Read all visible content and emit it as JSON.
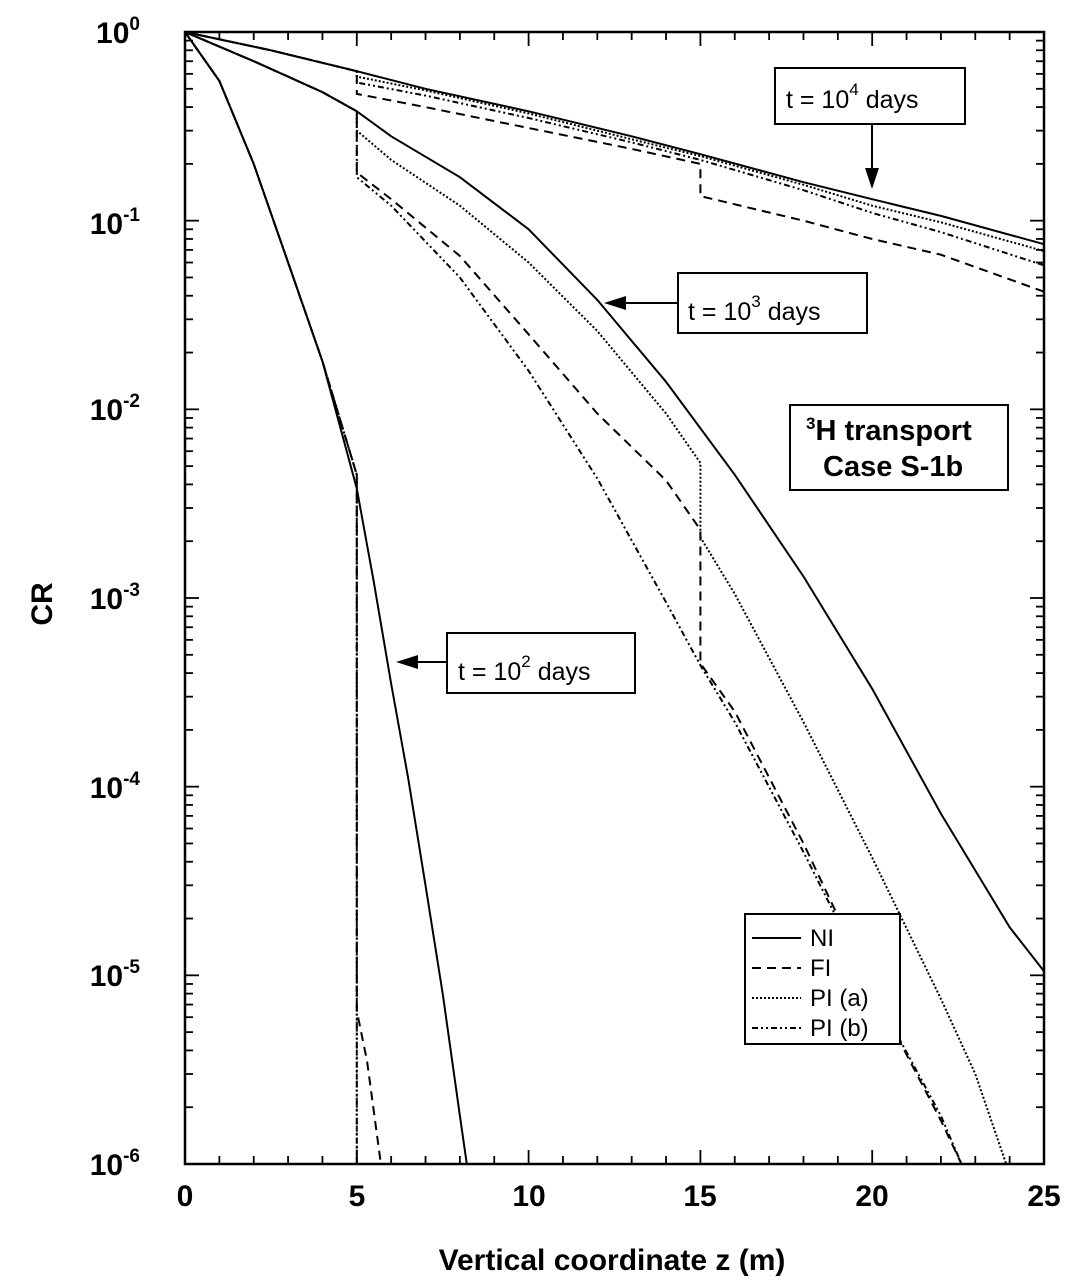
{
  "chart_data": {
    "type": "line",
    "title": "",
    "xlabel": "Vertical coordinate z (m)",
    "ylabel": "CR",
    "xlim": [
      0,
      25
    ],
    "ylim": [
      1e-06,
      1
    ],
    "yscale": "log",
    "x_ticks": [
      "0",
      "5",
      "10",
      "15",
      "20",
      "25"
    ],
    "y_ticks": [
      {
        "base": "10",
        "exp": "0"
      },
      {
        "base": "10",
        "exp": "-1"
      },
      {
        "base": "10",
        "exp": "-2"
      },
      {
        "base": "10",
        "exp": "-3"
      },
      {
        "base": "10",
        "exp": "-4"
      },
      {
        "base": "10",
        "exp": "-5"
      },
      {
        "base": "10",
        "exp": "-6"
      }
    ],
    "legend": {
      "placement": "bottom-right",
      "entries": [
        {
          "label": "NI",
          "style": "solid"
        },
        {
          "label": "FI",
          "style": "dashed"
        },
        {
          "label": "PI (a)",
          "style": "dotted"
        },
        {
          "label": "PI (b)",
          "style": "dashdot"
        }
      ]
    },
    "annotations": [
      {
        "prefix": "t = 10",
        "exp": "4",
        "suffix": "days"
      },
      {
        "prefix": "t = 10",
        "exp": "3",
        "suffix": "days"
      },
      {
        "prefix": "t = 10",
        "exp": "2",
        "suffix": "days"
      }
    ],
    "case_box": {
      "line1_sup": "3",
      "line1": "H transport",
      "line2": "Case S-1b"
    },
    "series": [
      {
        "name": "NI",
        "time": "t = 10^2 days",
        "style": "solid",
        "points": [
          [
            0,
            1
          ],
          [
            1,
            0.55
          ],
          [
            2,
            0.2
          ],
          [
            3,
            0.06
          ],
          [
            4,
            0.018
          ],
          [
            5,
            0.0038
          ],
          [
            5.5,
            0.0012
          ],
          [
            6,
            0.00035
          ],
          [
            6.5,
            0.00011
          ],
          [
            7,
            3e-05
          ],
          [
            7.5,
            8e-06
          ],
          [
            8,
            1.8e-06
          ],
          [
            8.2,
            1e-06
          ]
        ]
      },
      {
        "name": "FI",
        "time": "t = 10^2 days",
        "style": "dashed",
        "points": [
          [
            0,
            1
          ],
          [
            1,
            0.55
          ],
          [
            2,
            0.2
          ],
          [
            3,
            0.06
          ],
          [
            4,
            0.018
          ],
          [
            5,
            0.0045
          ],
          [
            5,
            6.5e-06
          ],
          [
            5.3,
            3.5e-06
          ],
          [
            5.7,
            1e-06
          ]
        ]
      },
      {
        "name": "PI (a)",
        "time": "t = 10^2 days",
        "style": "dotted",
        "points": [
          [
            0,
            1
          ],
          [
            1,
            0.55
          ],
          [
            2,
            0.2
          ],
          [
            3,
            0.06
          ],
          [
            4,
            0.018
          ],
          [
            5,
            0.0045
          ],
          [
            5,
            1e-06
          ]
        ]
      },
      {
        "name": "PI (b)",
        "time": "t = 10^2 days",
        "style": "dashdot",
        "points": [
          [
            0,
            1
          ],
          [
            1,
            0.55
          ],
          [
            2,
            0.2
          ],
          [
            3,
            0.06
          ],
          [
            4,
            0.018
          ],
          [
            5,
            0.0045
          ],
          [
            5,
            1e-06
          ]
        ]
      },
      {
        "name": "NI",
        "time": "t = 10^3 days",
        "style": "solid",
        "points": [
          [
            0,
            1
          ],
          [
            2,
            0.7
          ],
          [
            4,
            0.48
          ],
          [
            5,
            0.38
          ],
          [
            6,
            0.28
          ],
          [
            8,
            0.17
          ],
          [
            10,
            0.09
          ],
          [
            12,
            0.038
          ],
          [
            14,
            0.014
          ],
          [
            16,
            0.0045
          ],
          [
            18,
            0.0013
          ],
          [
            20,
            0.00033
          ],
          [
            22,
            7.2e-05
          ],
          [
            24,
            1.8e-05
          ],
          [
            25,
            1.05e-05
          ]
        ]
      },
      {
        "name": "FI",
        "time": "t = 10^3 days",
        "style": "dashed",
        "points": [
          [
            0,
            1
          ],
          [
            2,
            0.7
          ],
          [
            4,
            0.48
          ],
          [
            5,
            0.38
          ],
          [
            5,
            0.18
          ],
          [
            6,
            0.13
          ],
          [
            8,
            0.065
          ],
          [
            10,
            0.025
          ],
          [
            12,
            0.0095
          ],
          [
            14,
            0.0042
          ],
          [
            15,
            0.0023
          ],
          [
            15,
            0.00045
          ],
          [
            16,
            0.00025
          ],
          [
            18,
            5e-05
          ],
          [
            20,
            8.5e-06
          ],
          [
            22,
            1.7e-06
          ],
          [
            22.6,
            1e-06
          ]
        ]
      },
      {
        "name": "PI (a)",
        "time": "t = 10^3 days",
        "style": "dotted",
        "points": [
          [
            0,
            1
          ],
          [
            2,
            0.7
          ],
          [
            4,
            0.48
          ],
          [
            5,
            0.38
          ],
          [
            5,
            0.3
          ],
          [
            6,
            0.21
          ],
          [
            8,
            0.12
          ],
          [
            10,
            0.06
          ],
          [
            12,
            0.026
          ],
          [
            14,
            0.0095
          ],
          [
            15,
            0.0052
          ],
          [
            15,
            0.0021
          ],
          [
            16,
            0.00105
          ],
          [
            18,
            0.00022
          ],
          [
            20,
            4.2e-05
          ],
          [
            22,
            7.5e-06
          ],
          [
            23,
            3e-06
          ],
          [
            23.9,
            1e-06
          ]
        ]
      },
      {
        "name": "PI (b)",
        "time": "t = 10^3 days",
        "style": "dashdot",
        "points": [
          [
            0,
            1
          ],
          [
            2,
            0.7
          ],
          [
            4,
            0.48
          ],
          [
            5,
            0.38
          ],
          [
            5,
            0.17
          ],
          [
            6,
            0.12
          ],
          [
            8,
            0.05
          ],
          [
            10,
            0.016
          ],
          [
            12,
            0.0043
          ],
          [
            14,
            0.00095
          ],
          [
            15,
            0.00044
          ],
          [
            16,
            0.00022
          ],
          [
            18,
            4.5e-05
          ],
          [
            20,
            8.5e-06
          ],
          [
            22,
            1.8e-06
          ],
          [
            22.6,
            1e-06
          ]
        ]
      },
      {
        "name": "NI",
        "time": "t = 10^4 days",
        "style": "solid",
        "points": [
          [
            0,
            1
          ],
          [
            2.5,
            0.8
          ],
          [
            5,
            0.62
          ],
          [
            7,
            0.5
          ],
          [
            10,
            0.38
          ],
          [
            13,
            0.28
          ],
          [
            15,
            0.225
          ],
          [
            18,
            0.16
          ],
          [
            20,
            0.13
          ],
          [
            22,
            0.106
          ],
          [
            25,
            0.075
          ]
        ]
      },
      {
        "name": "FI",
        "time": "t = 10^4 days",
        "style": "dashed",
        "points": [
          [
            0,
            1
          ],
          [
            2.5,
            0.8
          ],
          [
            5,
            0.62
          ],
          [
            5,
            0.47
          ],
          [
            7,
            0.4
          ],
          [
            10,
            0.31
          ],
          [
            13,
            0.24
          ],
          [
            15,
            0.2
          ],
          [
            15,
            0.135
          ],
          [
            18,
            0.1
          ],
          [
            20,
            0.08
          ],
          [
            22,
            0.066
          ],
          [
            25,
            0.042
          ]
        ]
      },
      {
        "name": "PI (a)",
        "time": "t = 10^4 days",
        "style": "dotted",
        "points": [
          [
            0,
            1
          ],
          [
            2.5,
            0.8
          ],
          [
            5,
            0.62
          ],
          [
            5,
            0.58
          ],
          [
            7,
            0.49
          ],
          [
            10,
            0.37
          ],
          [
            13,
            0.27
          ],
          [
            15,
            0.22
          ],
          [
            18,
            0.155
          ],
          [
            20,
            0.12
          ],
          [
            22,
            0.098
          ],
          [
            25,
            0.069
          ]
        ]
      },
      {
        "name": "PI (b)",
        "time": "t = 10^4 days",
        "style": "dashdot",
        "points": [
          [
            0,
            1
          ],
          [
            2.5,
            0.8
          ],
          [
            5,
            0.62
          ],
          [
            5,
            0.54
          ],
          [
            7,
            0.46
          ],
          [
            10,
            0.35
          ],
          [
            13,
            0.26
          ],
          [
            15,
            0.21
          ],
          [
            18,
            0.145
          ],
          [
            20,
            0.11
          ],
          [
            22,
            0.087
          ],
          [
            25,
            0.058
          ]
        ]
      }
    ]
  }
}
